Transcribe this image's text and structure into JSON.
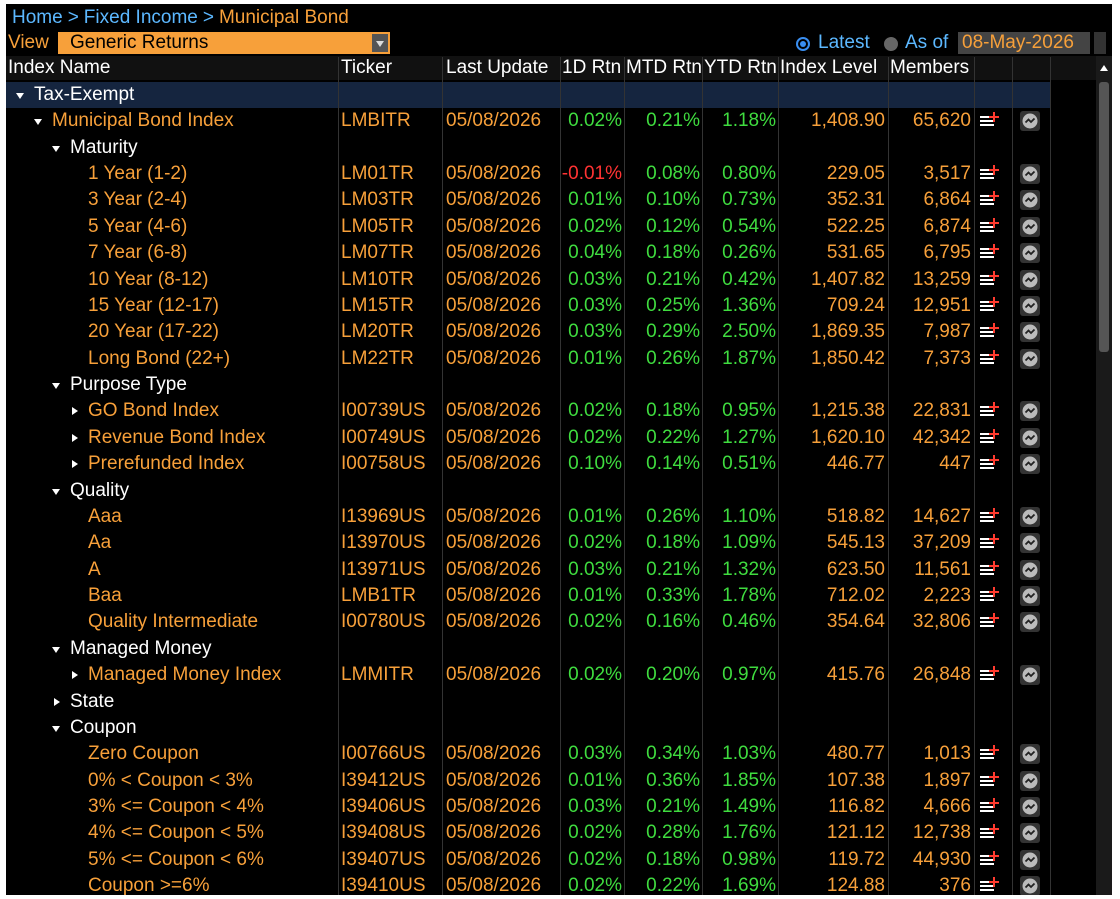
{
  "header": {
    "breadcrumb": [
      "Home",
      "Fixed Income",
      "Municipal Bond"
    ],
    "separator": ">",
    "view_label": "View",
    "view_value": "Generic Returns",
    "latest": "Latest",
    "as_of": "As of",
    "as_of_date": "08-May-2026"
  },
  "table": {
    "columns": [
      "Index Name",
      "Ticker",
      "Last Update",
      "1D Rtn",
      "MTD Rtn",
      "YTD Rtn",
      "Index Level",
      "Members"
    ],
    "rows": [
      {
        "name": "Tax-Exempt",
        "expanded": true,
        "children": [
          {
            "name": "Municipal Bond Index",
            "expanded": true,
            "ticker": "LMBITR",
            "last_update": "05/08/2026",
            "rtn_1d": "0.02%",
            "rtn_mtd": "0.21%",
            "rtn_ytd": "1.18%",
            "index_level": "1,408.90",
            "members": "65,620",
            "children": [
              {
                "name": "Maturity",
                "expanded": true,
                "children": [
                  {
                    "name": "1 Year (1-2)",
                    "ticker": "LM01TR",
                    "last_update": "05/08/2026",
                    "rtn_1d": "-0.01%",
                    "rtn_mtd": "0.08%",
                    "rtn_ytd": "0.80%",
                    "index_level": "229.05",
                    "members": "3,517"
                  },
                  {
                    "name": "3 Year (2-4)",
                    "ticker": "LM03TR",
                    "last_update": "05/08/2026",
                    "rtn_1d": "0.01%",
                    "rtn_mtd": "0.10%",
                    "rtn_ytd": "0.73%",
                    "index_level": "352.31",
                    "members": "6,864"
                  },
                  {
                    "name": "5 Year (4-6)",
                    "ticker": "LM05TR",
                    "last_update": "05/08/2026",
                    "rtn_1d": "0.02%",
                    "rtn_mtd": "0.12%",
                    "rtn_ytd": "0.54%",
                    "index_level": "522.25",
                    "members": "6,874"
                  },
                  {
                    "name": "7 Year (6-8)",
                    "ticker": "LM07TR",
                    "last_update": "05/08/2026",
                    "rtn_1d": "0.04%",
                    "rtn_mtd": "0.18%",
                    "rtn_ytd": "0.26%",
                    "index_level": "531.65",
                    "members": "6,795"
                  },
                  {
                    "name": "10 Year (8-12)",
                    "ticker": "LM10TR",
                    "last_update": "05/08/2026",
                    "rtn_1d": "0.03%",
                    "rtn_mtd": "0.21%",
                    "rtn_ytd": "0.42%",
                    "index_level": "1,407.82",
                    "members": "13,259"
                  },
                  {
                    "name": "15 Year (12-17)",
                    "ticker": "LM15TR",
                    "last_update": "05/08/2026",
                    "rtn_1d": "0.03%",
                    "rtn_mtd": "0.25%",
                    "rtn_ytd": "1.36%",
                    "index_level": "709.24",
                    "members": "12,951"
                  },
                  {
                    "name": "20 Year (17-22)",
                    "ticker": "LM20TR",
                    "last_update": "05/08/2026",
                    "rtn_1d": "0.03%",
                    "rtn_mtd": "0.29%",
                    "rtn_ytd": "2.50%",
                    "index_level": "1,869.35",
                    "members": "7,987"
                  },
                  {
                    "name": "Long Bond (22+)",
                    "ticker": "LM22TR",
                    "last_update": "05/08/2026",
                    "rtn_1d": "0.01%",
                    "rtn_mtd": "0.26%",
                    "rtn_ytd": "1.87%",
                    "index_level": "1,850.42",
                    "members": "7,373"
                  }
                ]
              },
              {
                "name": "Purpose Type",
                "expanded": true,
                "children": [
                  {
                    "name": "GO Bond Index",
                    "expanded": false,
                    "ticker": "I00739US",
                    "last_update": "05/08/2026",
                    "rtn_1d": "0.02%",
                    "rtn_mtd": "0.18%",
                    "rtn_ytd": "0.95%",
                    "index_level": "1,215.38",
                    "members": "22,831"
                  },
                  {
                    "name": "Revenue Bond Index",
                    "expanded": false,
                    "ticker": "I00749US",
                    "last_update": "05/08/2026",
                    "rtn_1d": "0.02%",
                    "rtn_mtd": "0.22%",
                    "rtn_ytd": "1.27%",
                    "index_level": "1,620.10",
                    "members": "42,342"
                  },
                  {
                    "name": "Prerefunded Index",
                    "expanded": false,
                    "ticker": "I00758US",
                    "last_update": "05/08/2026",
                    "rtn_1d": "0.10%",
                    "rtn_mtd": "0.14%",
                    "rtn_ytd": "0.51%",
                    "index_level": "446.77",
                    "members": "447"
                  }
                ]
              },
              {
                "name": "Quality",
                "expanded": true,
                "children": [
                  {
                    "name": "Aaa",
                    "ticker": "I13969US",
                    "last_update": "05/08/2026",
                    "rtn_1d": "0.01%",
                    "rtn_mtd": "0.26%",
                    "rtn_ytd": "1.10%",
                    "index_level": "518.82",
                    "members": "14,627"
                  },
                  {
                    "name": "Aa",
                    "ticker": "I13970US",
                    "last_update": "05/08/2026",
                    "rtn_1d": "0.02%",
                    "rtn_mtd": "0.18%",
                    "rtn_ytd": "1.09%",
                    "index_level": "545.13",
                    "members": "37,209"
                  },
                  {
                    "name": "A",
                    "ticker": "I13971US",
                    "last_update": "05/08/2026",
                    "rtn_1d": "0.03%",
                    "rtn_mtd": "0.21%",
                    "rtn_ytd": "1.32%",
                    "index_level": "623.50",
                    "members": "11,561"
                  },
                  {
                    "name": "Baa",
                    "ticker": "LMB1TR",
                    "last_update": "05/08/2026",
                    "rtn_1d": "0.01%",
                    "rtn_mtd": "0.33%",
                    "rtn_ytd": "1.78%",
                    "index_level": "712.02",
                    "members": "2,223"
                  },
                  {
                    "name": "Quality Intermediate",
                    "ticker": "I00780US",
                    "last_update": "05/08/2026",
                    "rtn_1d": "0.02%",
                    "rtn_mtd": "0.16%",
                    "rtn_ytd": "0.46%",
                    "index_level": "354.64",
                    "members": "32,806"
                  }
                ]
              },
              {
                "name": "Managed Money",
                "expanded": true,
                "children": [
                  {
                    "name": "Managed Money Index",
                    "expanded": false,
                    "ticker": "LMMITR",
                    "last_update": "05/08/2026",
                    "rtn_1d": "0.02%",
                    "rtn_mtd": "0.20%",
                    "rtn_ytd": "0.97%",
                    "index_level": "415.76",
                    "members": "26,848"
                  }
                ]
              },
              {
                "name": "State",
                "expanded": false
              },
              {
                "name": "Coupon",
                "expanded": true,
                "children": [
                  {
                    "name": "Zero Coupon",
                    "ticker": "I00766US",
                    "last_update": "05/08/2026",
                    "rtn_1d": "0.03%",
                    "rtn_mtd": "0.34%",
                    "rtn_ytd": "1.03%",
                    "index_level": "480.77",
                    "members": "1,013"
                  },
                  {
                    "name": "0% < Coupon < 3%",
                    "ticker": "I39412US",
                    "last_update": "05/08/2026",
                    "rtn_1d": "0.01%",
                    "rtn_mtd": "0.36%",
                    "rtn_ytd": "1.85%",
                    "index_level": "107.38",
                    "members": "1,897"
                  },
                  {
                    "name": "3% <= Coupon < 4%",
                    "ticker": "I39406US",
                    "last_update": "05/08/2026",
                    "rtn_1d": "0.03%",
                    "rtn_mtd": "0.21%",
                    "rtn_ytd": "1.49%",
                    "index_level": "116.82",
                    "members": "4,666"
                  },
                  {
                    "name": "4% <= Coupon < 5%",
                    "ticker": "I39408US",
                    "last_update": "05/08/2026",
                    "rtn_1d": "0.02%",
                    "rtn_mtd": "0.28%",
                    "rtn_ytd": "1.76%",
                    "index_level": "121.12",
                    "members": "12,738"
                  },
                  {
                    "name": "5% <= Coupon < 6%",
                    "ticker": "I39407US",
                    "last_update": "05/08/2026",
                    "rtn_1d": "0.02%",
                    "rtn_mtd": "0.18%",
                    "rtn_ytd": "0.98%",
                    "index_level": "119.72",
                    "members": "44,930"
                  },
                  {
                    "name": "Coupon >=6%",
                    "ticker": "I39410US",
                    "last_update": "05/08/2026",
                    "rtn_1d": "0.02%",
                    "rtn_mtd": "0.22%",
                    "rtn_ytd": "1.69%",
                    "index_level": "124.88",
                    "members": "376"
                  }
                ]
              }
            ]
          }
        ]
      }
    ]
  }
}
